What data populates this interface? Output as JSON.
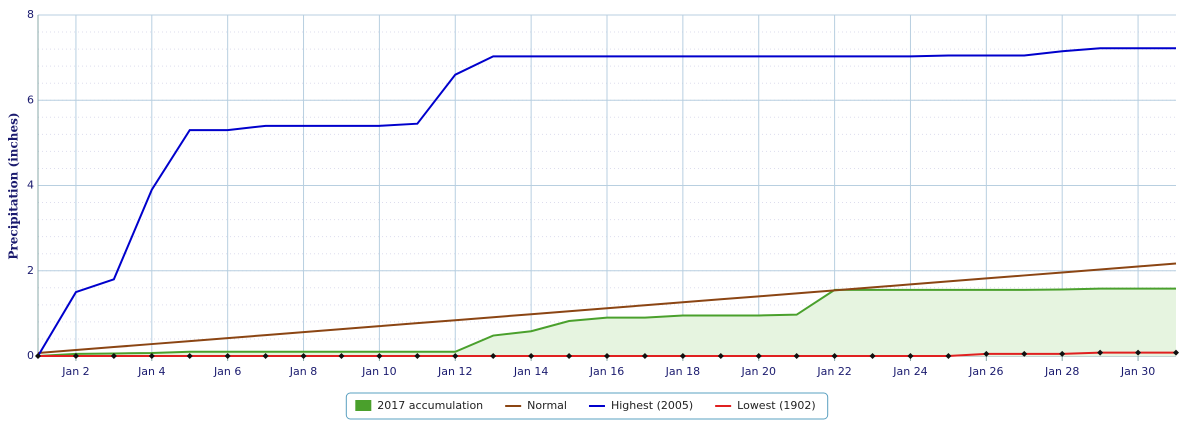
{
  "chart_data": {
    "type": "line",
    "y_label": "Precipitation (inches)",
    "categories": [
      null,
      "Jan 2",
      null,
      "Jan 4",
      null,
      "Jan 6",
      null,
      "Jan 8",
      null,
      "Jan 10",
      null,
      "Jan 12",
      null,
      "Jan 14",
      null,
      "Jan 16",
      null,
      "Jan 18",
      null,
      "Jan 20",
      null,
      "Jan 22",
      null,
      "Jan 24",
      null,
      "Jan 26",
      null,
      "Jan 28",
      null,
      "Jan 30",
      null
    ],
    "ylim": [
      0,
      8
    ],
    "yticks": [
      0,
      2,
      4,
      6,
      8
    ],
    "grid": true,
    "series": [
      {
        "name": "2017 accumulation",
        "color": "#4aa02c",
        "fill": "#e6f4e0",
        "area": true,
        "values": [
          0,
          0.05,
          0.06,
          0.07,
          0.1,
          0.1,
          0.1,
          0.1,
          0.1,
          0.1,
          0.1,
          0.1,
          0.48,
          0.58,
          0.82,
          0.9,
          0.9,
          0.95,
          0.95,
          0.95,
          0.97,
          1.55,
          1.55,
          1.55,
          1.55,
          1.55,
          1.55,
          1.56,
          1.58,
          1.58,
          1.58
        ]
      },
      {
        "name": "Normal",
        "color": "#8b4513",
        "values": [
          0.07,
          0.14,
          0.21,
          0.28,
          0.35,
          0.42,
          0.49,
          0.56,
          0.63,
          0.7,
          0.77,
          0.84,
          0.91,
          0.98,
          1.05,
          1.12,
          1.19,
          1.26,
          1.33,
          1.4,
          1.47,
          1.54,
          1.61,
          1.68,
          1.75,
          1.82,
          1.89,
          1.96,
          2.03,
          2.1,
          2.17
        ]
      },
      {
        "name": "Highest (2005)",
        "color": "#0000cc",
        "values": [
          0,
          1.5,
          1.8,
          3.9,
          5.3,
          5.3,
          5.4,
          5.4,
          5.4,
          5.4,
          5.45,
          6.6,
          7.03,
          7.03,
          7.03,
          7.03,
          7.03,
          7.03,
          7.03,
          7.03,
          7.03,
          7.03,
          7.03,
          7.03,
          7.05,
          7.05,
          7.05,
          7.15,
          7.22,
          7.22,
          7.22
        ]
      },
      {
        "name": "Lowest (1902)",
        "color": "#e02020",
        "markers": true,
        "values": [
          0,
          0,
          0,
          0,
          0,
          0,
          0,
          0,
          0,
          0,
          0,
          0,
          0,
          0,
          0,
          0,
          0,
          0,
          0,
          0,
          0,
          0,
          0,
          0,
          0,
          0.05,
          0.05,
          0.05,
          0.08,
          0.08,
          0.08
        ]
      }
    ]
  }
}
